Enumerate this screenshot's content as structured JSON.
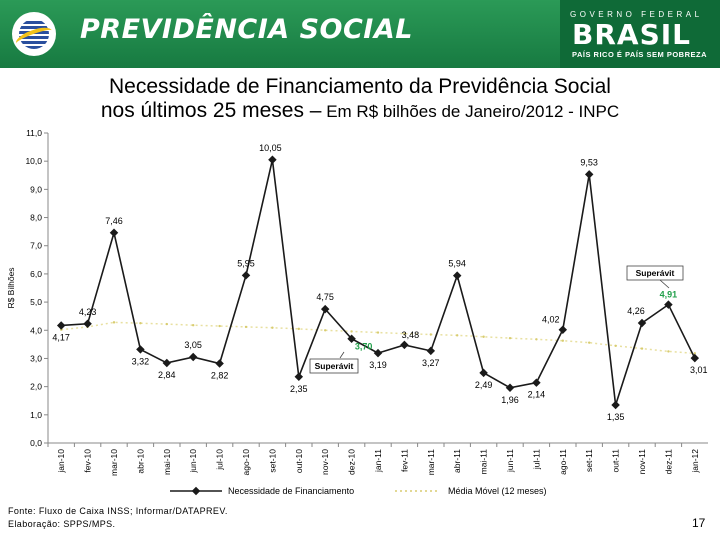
{
  "header": {
    "brand": "PREVIDÊNCIA SOCIAL",
    "gov_top": "GOVERNO FEDERAL",
    "gov_brasil": "BRASIL",
    "gov_slogan": "PAÍS RICO É PAÍS SEM POBREZA",
    "color_green": "#1f8a4d"
  },
  "title": {
    "line1": "Necessidade de Financiamento da Previdência Social",
    "line2a": "nos últimos 25 meses –",
    "line2b": " Em R$ bilhões de Janeiro/2012 - INPC"
  },
  "footer": {
    "source": "Fonte: Fluxo de Caixa INSS; Informar/DATAPREV.",
    "elaboration": "Elaboração: SPPS/MPS.",
    "page": "17"
  },
  "chart_data": {
    "type": "line",
    "ylabel": "R$ Bilhões",
    "ylim": [
      0,
      11
    ],
    "yticks": [
      "0,0",
      "1,0",
      "2,0",
      "3,0",
      "4,0",
      "5,0",
      "6,0",
      "7,0",
      "8,0",
      "9,0",
      "10,0",
      "11,0"
    ],
    "categories": [
      "jan-10",
      "fev-10",
      "mar-10",
      "abr-10",
      "mai-10",
      "jun-10",
      "jul-10",
      "ago-10",
      "set-10",
      "out-10",
      "nov-10",
      "dez-10",
      "jan-11",
      "fev-11",
      "mar-11",
      "abr-11",
      "mai-11",
      "jun-11",
      "jul-11",
      "ago-11",
      "set-11",
      "out-11",
      "nov-11",
      "dez-11",
      "jan-12"
    ],
    "series": [
      {
        "name": "Necessidade de Financiamento",
        "color": "#1a1a1a",
        "values": [
          4.17,
          4.23,
          7.46,
          3.32,
          2.84,
          3.05,
          2.82,
          5.95,
          10.05,
          2.35,
          4.75,
          3.7,
          3.19,
          3.48,
          3.27,
          5.94,
          2.49,
          1.96,
          2.14,
          4.02,
          9.53,
          1.35,
          4.26,
          4.91,
          3.01
        ],
        "labels": [
          "4,17",
          "4,23",
          "7,46",
          "3,32",
          "2,84",
          "3,05",
          "2,82",
          "5,95",
          "10,05",
          "2,35",
          "4,75",
          "3,70",
          "3,19",
          "3,48",
          "3,27",
          "5,94",
          "2,49",
          "1,96",
          "2,14",
          "4,02",
          "9,53",
          "1,35",
          "4,26",
          "4,91",
          "3,01"
        ]
      },
      {
        "name": "Média Móvel (12 meses)",
        "color": "#e8e0a0",
        "values": [
          4.02,
          4.12,
          4.28,
          4.25,
          4.22,
          4.18,
          4.15,
          4.12,
          4.09,
          4.05,
          4.0,
          3.96,
          3.92,
          3.88,
          3.85,
          3.82,
          3.77,
          3.72,
          3.68,
          3.63,
          3.56,
          3.45,
          3.35,
          3.25,
          3.18
        ]
      }
    ],
    "annotations": [
      {
        "text": "Superávit",
        "index": 11
      },
      {
        "text": "Superávit",
        "index": 23
      }
    ],
    "highlight_color": "#22a04b",
    "grid": false,
    "legend": "bottom"
  }
}
